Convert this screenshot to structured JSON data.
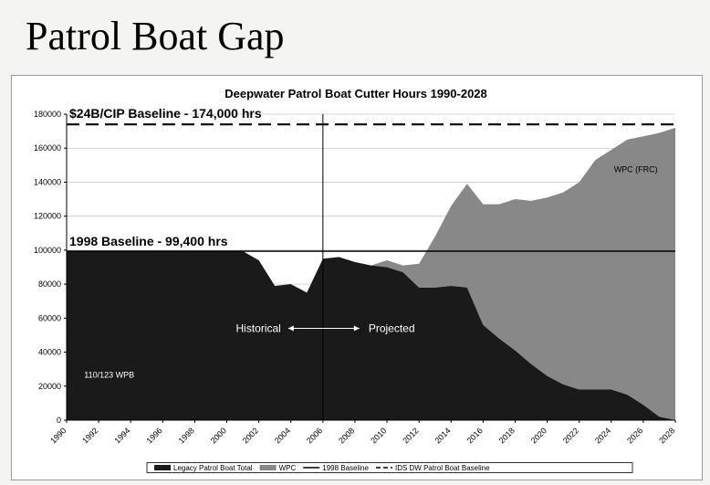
{
  "slide": {
    "title": "Patrol Boat Gap"
  },
  "chart_data": {
    "type": "area",
    "title": "Deepwater Patrol Boat Cutter Hours 1990-2028",
    "xlim": [
      1990,
      2028
    ],
    "ylim": [
      0,
      180000
    ],
    "ytick_values": [
      0,
      20000,
      40000,
      60000,
      80000,
      100000,
      120000,
      140000,
      160000,
      180000
    ],
    "ytick_labels": [
      "0",
      "20000",
      "40000",
      "60000",
      "80000",
      "100000",
      "120000",
      "140000",
      "160000",
      "180000"
    ],
    "xtick_values": [
      1990,
      1992,
      1994,
      1996,
      1998,
      2000,
      2002,
      2004,
      2006,
      2008,
      2010,
      2012,
      2014,
      2016,
      2018,
      2020,
      2022,
      2024,
      2026,
      2028
    ],
    "xtick_labels": [
      "1990",
      "1992",
      "1994",
      "1996",
      "1998",
      "2000",
      "2002",
      "2004",
      "2006",
      "2008",
      "2010",
      "2012",
      "2014",
      "2016",
      "2018",
      "2020",
      "2022",
      "2024",
      "2026",
      "2028"
    ],
    "grid": true,
    "legend_position": "bottom",
    "series": [
      {
        "name": "Legacy Patrol Boat Total",
        "color": "#1a1a1a",
        "x": [
          1990,
          2001,
          2002,
          2003,
          2004,
          2005,
          2006,
          2007,
          2008,
          2009,
          2010,
          2011,
          2012,
          2013,
          2014,
          2015,
          2016,
          2017,
          2018,
          2019,
          2020,
          2021,
          2022,
          2023,
          2024,
          2025,
          2026,
          2027,
          2028
        ],
        "values": [
          99400,
          99400,
          94000,
          79000,
          80000,
          75000,
          95000,
          96000,
          93000,
          91000,
          90000,
          87000,
          78000,
          78000,
          79000,
          78000,
          56000,
          48000,
          41000,
          33000,
          26000,
          21000,
          18000,
          18000,
          18000,
          15000,
          9000,
          2000,
          0
        ]
      },
      {
        "name": "WPC",
        "color": "#888888",
        "x": [
          1990,
          2001,
          2002,
          2003,
          2004,
          2005,
          2006,
          2007,
          2008,
          2009,
          2010,
          2011,
          2012,
          2013,
          2014,
          2015,
          2016,
          2017,
          2018,
          2019,
          2020,
          2021,
          2022,
          2023,
          2024,
          2025,
          2026,
          2027,
          2028
        ],
        "values": [
          0,
          0,
          0,
          0,
          0,
          0,
          0,
          0,
          0,
          0,
          4000,
          4000,
          14000,
          30000,
          47000,
          61000,
          71000,
          79000,
          89000,
          96000,
          105000,
          113000,
          122000,
          135000,
          141000,
          150000,
          158000,
          167000,
          172000
        ]
      }
    ],
    "baselines": [
      {
        "name": "1998 Baseline",
        "value": 99400,
        "color": "#000000",
        "style": "solid"
      },
      {
        "name": "IDS DW Patrol Boat Baseline",
        "value": 174000,
        "color": "#000000",
        "style": "dashed"
      }
    ],
    "divider_year": 2006,
    "annotations": {
      "cip_baseline": "$24B/CIP Baseline - 174,000 hrs",
      "baseline_1998": "1998 Baseline - 99,400 hrs",
      "historical": "Historical",
      "projected": "Projected",
      "legacy_label": "110/123 WPB",
      "wpc_label": "WPC (FRC)"
    }
  }
}
